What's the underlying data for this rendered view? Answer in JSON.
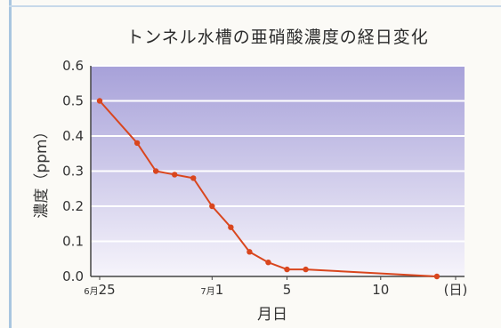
{
  "chart_data": {
    "type": "line",
    "title": "トンネル水槽の亜硝酸濃度の経日変化",
    "xlabel": "月日",
    "ylabel": "濃度（ppm）",
    "ylim": [
      0,
      0.6
    ],
    "yticks": [
      0.0,
      0.1,
      0.2,
      0.3,
      0.4,
      0.5,
      0.6
    ],
    "ytick_labels": [
      "0.0",
      "0.1",
      "0.2",
      "0.3",
      "0.4",
      "0.5",
      "0.6"
    ],
    "xlim": [
      25,
      44
    ],
    "x_tick_labels": [
      {
        "x": 25,
        "small": "6月",
        "main": "25"
      },
      {
        "x": 31,
        "small": "7月",
        "main": "1"
      },
      {
        "x": 35,
        "small": "",
        "main": "5"
      },
      {
        "x": 40,
        "small": "",
        "main": "10"
      },
      {
        "x": 44,
        "small": "",
        "main": "(日)"
      }
    ],
    "grid": true,
    "series": [
      {
        "name": "",
        "color": "#d9461e",
        "x": [
          25,
          27,
          28,
          29,
          30,
          31,
          32,
          33,
          34,
          35,
          36,
          43
        ],
        "y": [
          0.5,
          0.38,
          0.3,
          0.29,
          0.28,
          0.2,
          0.14,
          0.07,
          0.04,
          0.02,
          0.02,
          0.0
        ]
      }
    ]
  },
  "colors": {
    "plot_top": "#a7a1d9",
    "plot_bottom": "#f6f4fb",
    "gridline": "#ffffff",
    "line": "#d9461e"
  }
}
